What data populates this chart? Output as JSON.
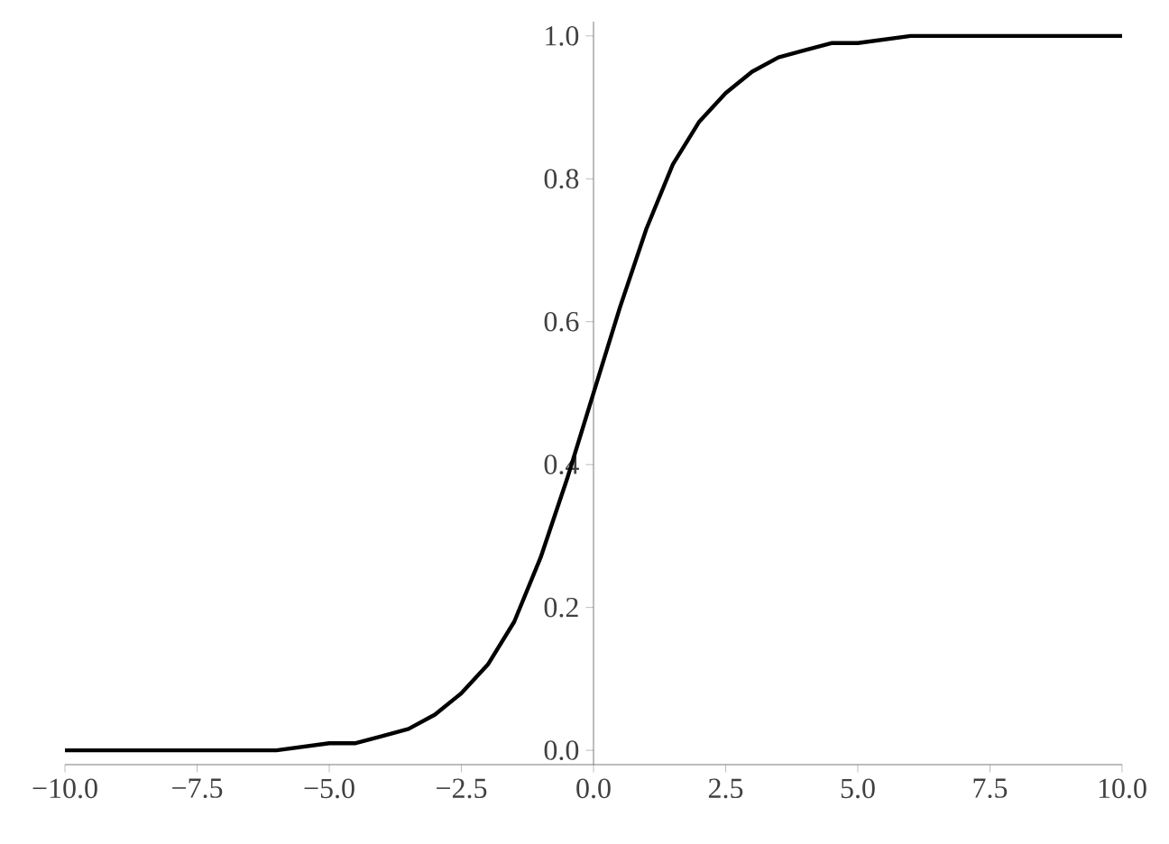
{
  "chart_data": {
    "type": "line",
    "color": "#000000",
    "line_style": "solid",
    "grid": false,
    "x": [
      -10,
      -9,
      -8,
      -7,
      -6,
      -5,
      -4.5,
      -4,
      -3.5,
      -3,
      -2.5,
      -2,
      -1.5,
      -1,
      -0.5,
      0,
      0.5,
      1,
      1.5,
      2,
      2.5,
      3,
      3.5,
      4,
      4.5,
      5,
      6,
      7,
      8,
      9,
      10
    ],
    "values": [
      0.0,
      0.0,
      0.0,
      0.0,
      0.0,
      0.01,
      0.01,
      0.02,
      0.03,
      0.05,
      0.08,
      0.12,
      0.18,
      0.27,
      0.38,
      0.5,
      0.62,
      0.73,
      0.82,
      0.88,
      0.92,
      0.95,
      0.97,
      0.98,
      0.99,
      0.99,
      1.0,
      1.0,
      1.0,
      1.0,
      1.0
    ],
    "xlim": [
      -10,
      10
    ],
    "ylim": [
      -0.02,
      1.02
    ],
    "xticks": [
      {
        "value": -10,
        "label": "−10.0"
      },
      {
        "value": -7.5,
        "label": "−7.5"
      },
      {
        "value": -5,
        "label": "−5.0"
      },
      {
        "value": -2.5,
        "label": "−2.5"
      },
      {
        "value": 0,
        "label": "0.0"
      },
      {
        "value": 2.5,
        "label": "2.5"
      },
      {
        "value": 5,
        "label": "5.0"
      },
      {
        "value": 7.5,
        "label": "7.5"
      },
      {
        "value": 10,
        "label": "10.0"
      }
    ],
    "yticks": [
      {
        "value": 0,
        "label": "0.0"
      },
      {
        "value": 0.2,
        "label": "0.2"
      },
      {
        "value": 0.4,
        "label": "0.4"
      },
      {
        "value": 0.6,
        "label": "0.6"
      },
      {
        "value": 0.8,
        "label": "0.8"
      },
      {
        "value": 1,
        "label": "1.0"
      }
    ]
  }
}
